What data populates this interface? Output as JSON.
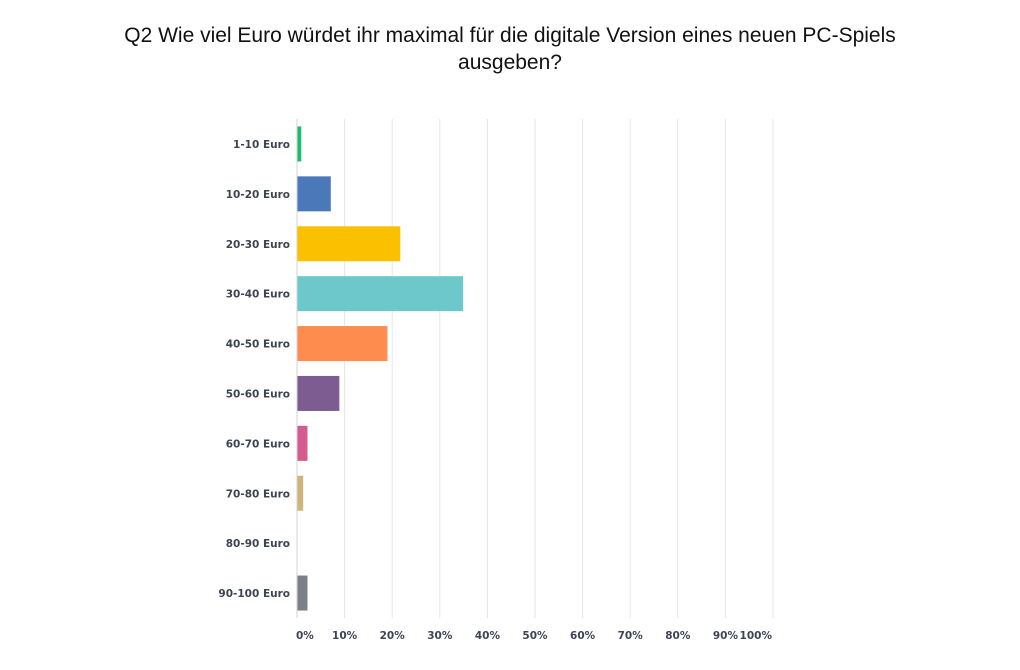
{
  "chart_data": {
    "type": "bar",
    "orientation": "horizontal",
    "title": "Q2 Wie viel Euro würdet ihr maximal für die digitale Version eines neuen PC-Spiels ausgeben?",
    "categories": [
      "1-10 Euro",
      "10-20 Euro",
      "20-30 Euro",
      "30-40 Euro",
      "40-50 Euro",
      "50-60 Euro",
      "60-70 Euro",
      "70-80 Euro",
      "80-90 Euro",
      "90-100 Euro"
    ],
    "values": [
      0.9,
      7.1,
      21.7,
      34.9,
      19.0,
      8.9,
      2.2,
      1.3,
      0,
      2.2
    ],
    "unit": "%",
    "xlim": [
      0,
      100
    ],
    "xticks": [
      "0%",
      "10%",
      "20%",
      "30%",
      "40%",
      "50%",
      "60%",
      "70%",
      "80%",
      "90%",
      "100%"
    ],
    "grid": true,
    "colors": [
      "#1dba6f",
      "#4a78b8",
      "#fbc000",
      "#6cc8cb",
      "#ff8c4f",
      "#7d5c92",
      "#d45b8d",
      "#ccb67c",
      "#b9b9b9",
      "#7b8088"
    ]
  }
}
